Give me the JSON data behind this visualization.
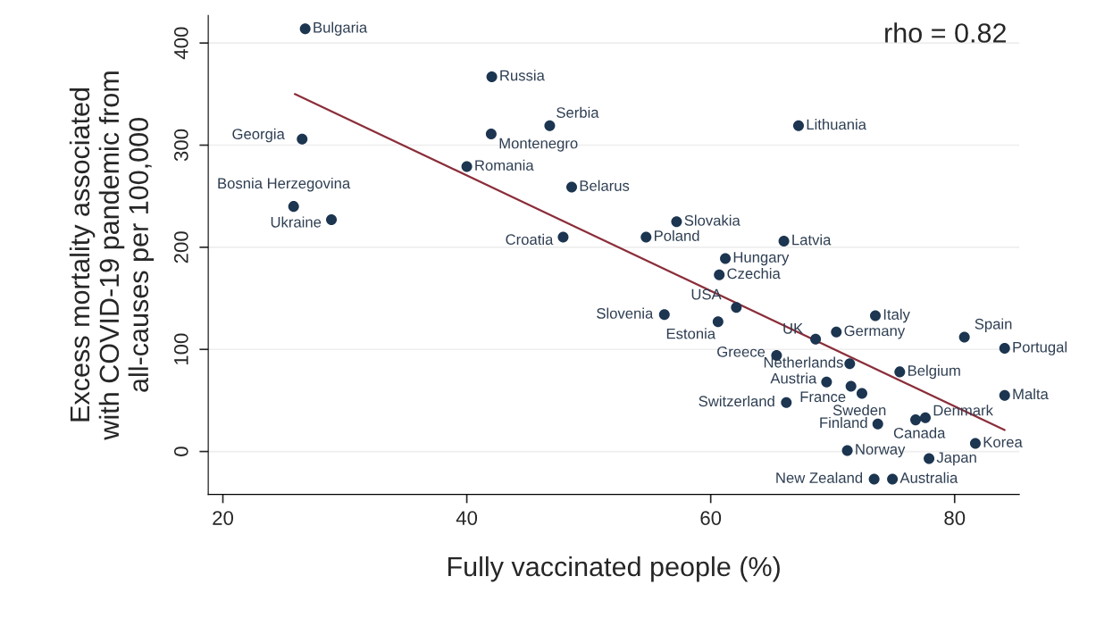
{
  "chart_data": {
    "type": "scatter",
    "xlabel": "Fully vaccinated people (%)",
    "ylabel": "Excess mortality associated\nwith COVID-19 pandemic from\nall-causes per 100,000",
    "xlim": [
      18.8,
      85.3
    ],
    "ylim": [
      -42,
      427
    ],
    "xticks": [
      20,
      40,
      60,
      80
    ],
    "yticks": [
      0,
      100,
      200,
      300,
      400
    ],
    "grid": "y",
    "legend": false,
    "marker": "circle",
    "series": [
      {
        "color": "#1c3550",
        "x": [
          26.75,
          42.05,
          46.8,
          42.0,
          26.5,
          40.0,
          48.6,
          25.8,
          28.9,
          47.9,
          67.2,
          57.2,
          54.7,
          66.0,
          61.2,
          60.7,
          62.1,
          56.2,
          60.6,
          73.5,
          70.3,
          68.6,
          80.8,
          84.1,
          65.4,
          71.4,
          75.5,
          69.5,
          71.5,
          72.4,
          84.1,
          66.2,
          77.6,
          76.8,
          73.7,
          81.7,
          71.2,
          77.9,
          73.4,
          74.9
        ],
        "values": [
          414,
          367,
          319,
          311,
          306,
          279,
          259,
          240,
          227,
          210,
          319,
          225,
          210,
          206,
          189,
          173,
          141,
          134,
          127,
          133,
          117,
          110,
          112,
          101,
          94,
          86,
          78,
          68,
          64,
          57,
          55,
          48,
          33,
          31,
          27,
          8,
          1,
          -7,
          -27,
          -27
        ]
      },
      {
        "type": "line",
        "color": "#8b2e3a",
        "marker": "none",
        "x": [
          25.9,
          84.1
        ],
        "values": [
          350,
          21
        ]
      }
    ],
    "annotations": [
      {
        "text": "Bulgaria",
        "x": 26.75,
        "y": 414
      },
      {
        "text": "Russia",
        "x": 42.05,
        "y": 367
      },
      {
        "text": "Serbia",
        "x": 46.8,
        "y": 319
      },
      {
        "text": "Montenegro",
        "x": 42.0,
        "y": 311
      },
      {
        "text": "Georgia",
        "x": 26.5,
        "y": 306
      },
      {
        "text": "Romania",
        "x": 40.0,
        "y": 279
      },
      {
        "text": "Belarus",
        "x": 48.6,
        "y": 259
      },
      {
        "text": "Bosnia Herzegovina",
        "x": 25.8,
        "y": 240
      },
      {
        "text": "Ukraine",
        "x": 28.9,
        "y": 227
      },
      {
        "text": "Croatia",
        "x": 47.9,
        "y": 210
      },
      {
        "text": "Lithuania",
        "x": 67.2,
        "y": 319
      },
      {
        "text": "Slovakia",
        "x": 57.2,
        "y": 225
      },
      {
        "text": "Poland",
        "x": 54.7,
        "y": 210
      },
      {
        "text": "Latvia",
        "x": 66.0,
        "y": 206
      },
      {
        "text": "Hungary",
        "x": 61.2,
        "y": 189
      },
      {
        "text": "Czechia",
        "x": 60.7,
        "y": 173
      },
      {
        "text": "USA",
        "x": 62.1,
        "y": 141
      },
      {
        "text": "Slovenia",
        "x": 56.2,
        "y": 134
      },
      {
        "text": "Estonia",
        "x": 60.6,
        "y": 127
      },
      {
        "text": "Italy",
        "x": 73.5,
        "y": 133
      },
      {
        "text": "Germany",
        "x": 70.3,
        "y": 117
      },
      {
        "text": "UK",
        "x": 68.6,
        "y": 110
      },
      {
        "text": "Spain",
        "x": 80.8,
        "y": 112
      },
      {
        "text": "Portugal",
        "x": 84.1,
        "y": 101
      },
      {
        "text": "Greece",
        "x": 65.4,
        "y": 94
      },
      {
        "text": "Netherlands",
        "x": 71.4,
        "y": 86
      },
      {
        "text": "Belgium",
        "x": 75.5,
        "y": 78
      },
      {
        "text": "Austria",
        "x": 69.5,
        "y": 68
      },
      {
        "text": "France",
        "x": 71.5,
        "y": 64
      },
      {
        "text": "Sweden",
        "x": 72.4,
        "y": 57
      },
      {
        "text": "Malta",
        "x": 84.1,
        "y": 55
      },
      {
        "text": "Switzerland",
        "x": 66.2,
        "y": 48
      },
      {
        "text": "Denmark",
        "x": 77.6,
        "y": 33
      },
      {
        "text": "Canada",
        "x": 76.8,
        "y": 31
      },
      {
        "text": "Finland",
        "x": 73.7,
        "y": 27
      },
      {
        "text": "Korea",
        "x": 81.7,
        "y": 8
      },
      {
        "text": "Norway",
        "x": 71.2,
        "y": 1
      },
      {
        "text": "Japan",
        "x": 77.9,
        "y": -7
      },
      {
        "text": "New Zealand",
        "x": 73.4,
        "y": -27
      },
      {
        "text": "Australia",
        "x": 74.9,
        "y": -27
      },
      "rho = 0.82"
    ]
  }
}
